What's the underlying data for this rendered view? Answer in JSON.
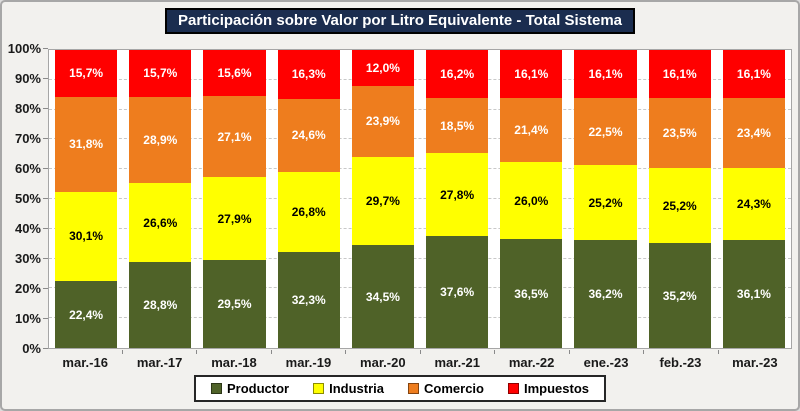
{
  "chart_data": {
    "type": "bar",
    "subtype": "stacked-100-percent",
    "title": "Participación sobre Valor por Litro Equivalente - Total Sistema",
    "categories": [
      "mar.-16",
      "mar.-17",
      "mar.-18",
      "mar.-19",
      "mar.-20",
      "mar.-21",
      "mar.-22",
      "ene.-23",
      "feb.-23",
      "mar.-23"
    ],
    "series": [
      {
        "name": "Productor",
        "color": "#4F6228",
        "label_color": "#FFFFFF",
        "values": [
          22.4,
          28.8,
          29.5,
          32.3,
          34.5,
          37.6,
          36.5,
          36.2,
          35.2,
          36.1
        ]
      },
      {
        "name": "Industria",
        "color": "#FFFF00",
        "label_color": "#000000",
        "values": [
          30.1,
          26.6,
          27.9,
          26.8,
          29.7,
          27.8,
          26.0,
          25.2,
          25.2,
          24.3
        ]
      },
      {
        "name": "Comercio",
        "color": "#EE7D1E",
        "label_color": "#FFFFFF",
        "values": [
          31.8,
          28.9,
          27.1,
          24.6,
          23.9,
          18.5,
          21.4,
          22.5,
          23.5,
          23.4
        ]
      },
      {
        "name": "Impuestos",
        "color": "#FF0000",
        "label_color": "#FFFFFF",
        "values": [
          15.7,
          15.7,
          15.6,
          16.3,
          12.0,
          16.2,
          16.1,
          16.1,
          16.1,
          16.1
        ]
      }
    ],
    "value_label_format": "0,0%",
    "xlabel": "",
    "ylabel": "",
    "ylim": [
      0,
      100
    ],
    "y_ticks": [
      "0%",
      "10%",
      "20%",
      "30%",
      "40%",
      "50%",
      "60%",
      "70%",
      "80%",
      "90%",
      "100%"
    ],
    "grid": true,
    "gridline_style": "dashed",
    "legend_position": "bottom",
    "stack_order_bottom_to_top": [
      "Productor",
      "Industria",
      "Comercio",
      "Impuestos"
    ]
  },
  "colors": {
    "background": "#F2F1EE",
    "plot_background": "#FFFFFF",
    "title_background": "#1B2D4F",
    "title_text": "#FFFFFF",
    "gridline": "#C8C8C8",
    "axis_text": "#1A1A1A"
  }
}
